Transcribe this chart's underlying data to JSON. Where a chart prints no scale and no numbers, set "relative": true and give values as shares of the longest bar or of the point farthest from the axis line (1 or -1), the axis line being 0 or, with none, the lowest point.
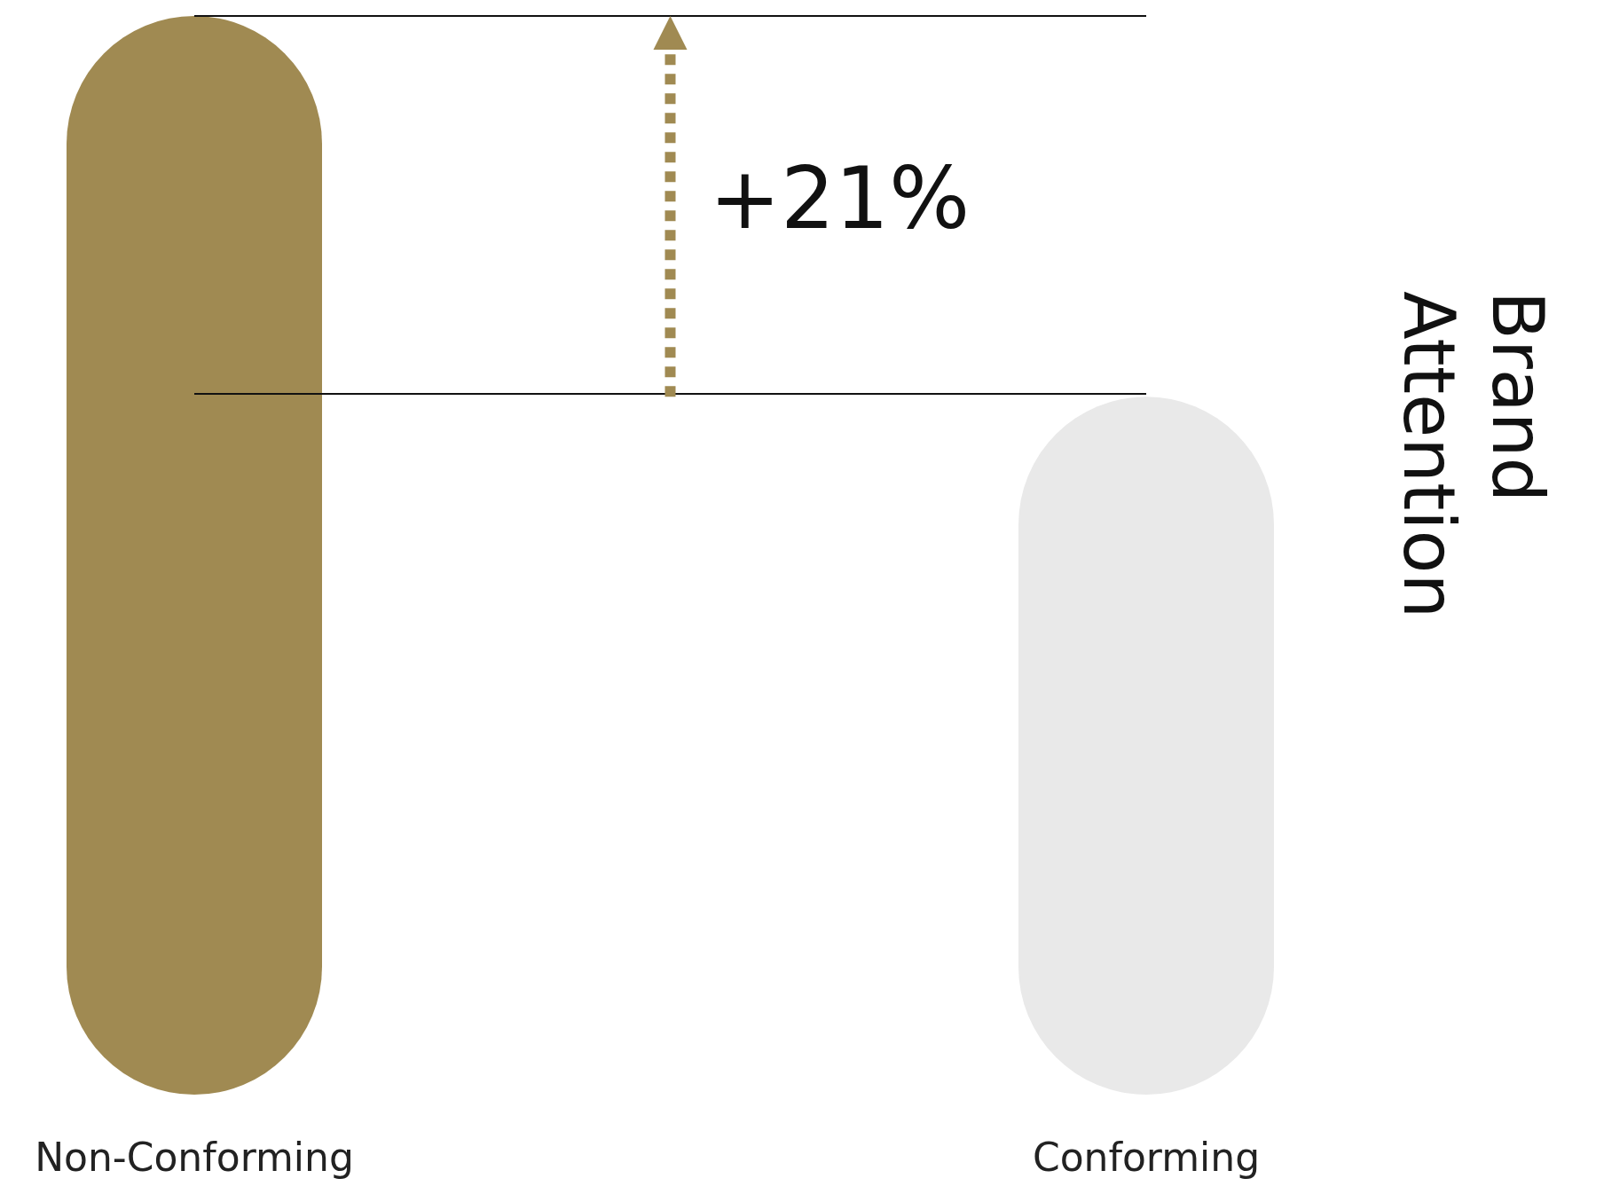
{
  "chart_data": {
    "type": "bar",
    "relative": true,
    "ylabel": "Brand Attention",
    "categories": [
      "Non-Conforming",
      "Conforming"
    ],
    "values": [
      1,
      0.647
    ],
    "colors": [
      "#a08a52",
      "#e9e9e9"
    ],
    "ref_lines": [
      {
        "axis": "y",
        "value": 1,
        "color": "#111111"
      },
      {
        "axis": "y",
        "value": 0.647,
        "color": "#111111"
      }
    ],
    "annotations": [
      "+21%"
    ]
  }
}
